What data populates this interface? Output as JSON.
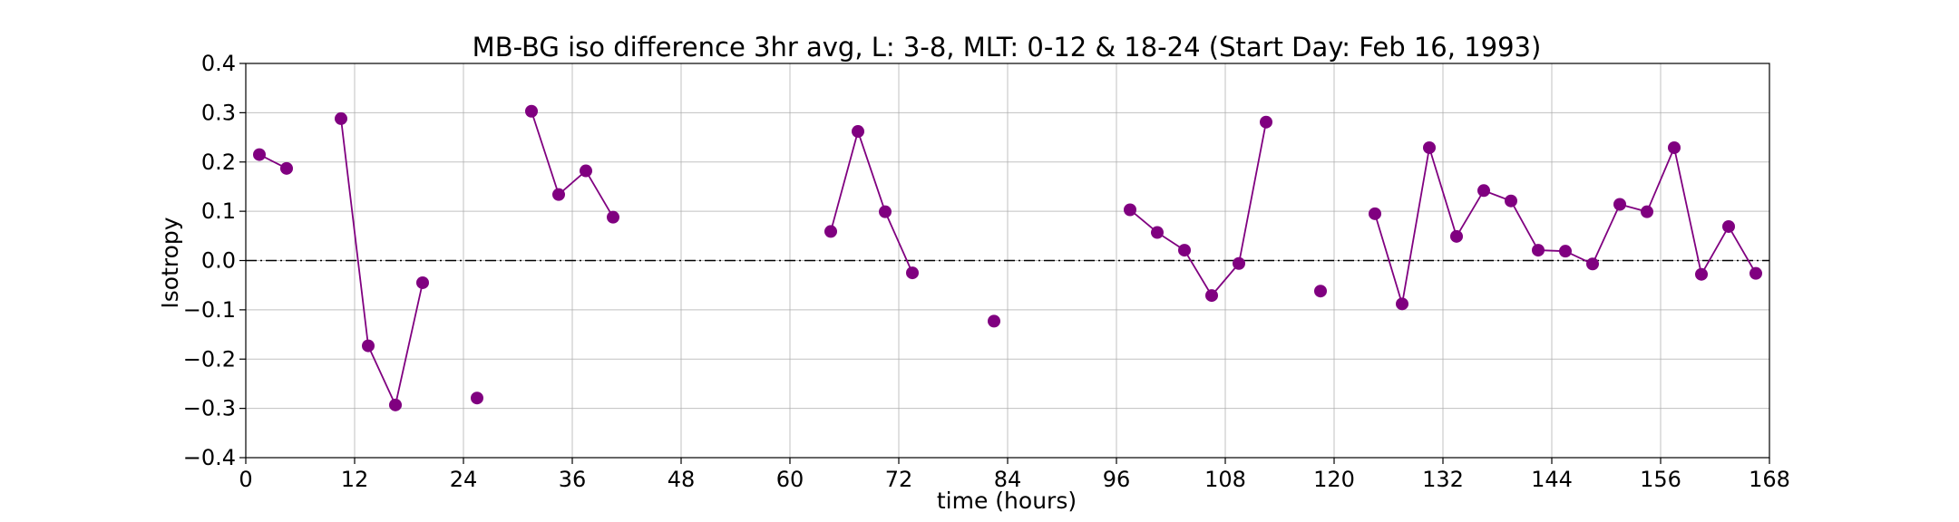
{
  "chart_data": {
    "type": "line",
    "title": "MB-BG iso difference 3hr avg, L: 3-8, MLT: 0-12 & 18-24 (Start Day: Feb 16, 1993)",
    "xlabel": "time (hours)",
    "ylabel": "Isotropy",
    "xlim": [
      0,
      168
    ],
    "ylim": [
      -0.4,
      0.4
    ],
    "xticks": [
      0,
      12,
      24,
      36,
      48,
      60,
      72,
      84,
      96,
      108,
      120,
      132,
      144,
      156,
      168
    ],
    "yticks": [
      -0.4,
      -0.3,
      -0.2,
      -0.1,
      0.0,
      0.1,
      0.2,
      0.3,
      0.4
    ],
    "xtick_labels": [
      "0",
      "12",
      "24",
      "36",
      "48",
      "60",
      "72",
      "84",
      "96",
      "108",
      "120",
      "132",
      "144",
      "156",
      "168"
    ],
    "ytick_labels": [
      "−0.4",
      "−0.3",
      "−0.2",
      "−0.1",
      "0.0",
      "0.1",
      "0.2",
      "0.3",
      "0.4"
    ],
    "grid": true,
    "reference_line": {
      "y": 0.0,
      "style": "dash-dot",
      "color": "#000000"
    },
    "series": [
      {
        "color": "#800080",
        "marker": "circle",
        "segments": [
          [
            [
              1.5,
              0.215
            ],
            [
              4.5,
              0.187
            ]
          ],
          [
            [
              10.5,
              0.288
            ],
            [
              13.5,
              -0.173
            ],
            [
              16.5,
              -0.293
            ],
            [
              19.5,
              -0.045
            ]
          ],
          [
            [
              25.5,
              -0.279
            ]
          ],
          [
            [
              31.5,
              0.303
            ],
            [
              34.5,
              0.134
            ],
            [
              37.5,
              0.182
            ],
            [
              40.5,
              0.088
            ]
          ],
          [
            [
              64.5,
              0.059
            ],
            [
              67.5,
              0.262
            ],
            [
              70.5,
              0.099
            ],
            [
              73.5,
              -0.025
            ]
          ],
          [
            [
              82.5,
              -0.123
            ]
          ],
          [
            [
              97.5,
              0.103
            ],
            [
              100.5,
              0.057
            ],
            [
              103.5,
              0.021
            ],
            [
              106.5,
              -0.071
            ],
            [
              109.5,
              -0.006
            ],
            [
              112.5,
              0.281
            ]
          ],
          [
            [
              118.5,
              -0.062
            ]
          ],
          [
            [
              124.5,
              0.095
            ],
            [
              127.5,
              -0.088
            ],
            [
              130.5,
              0.229
            ],
            [
              133.5,
              0.049
            ],
            [
              136.5,
              0.142
            ],
            [
              139.5,
              0.121
            ],
            [
              142.5,
              0.021
            ],
            [
              145.5,
              0.019
            ],
            [
              148.5,
              -0.007
            ],
            [
              151.5,
              0.114
            ],
            [
              154.5,
              0.099
            ],
            [
              157.5,
              0.229
            ],
            [
              160.5,
              -0.028
            ],
            [
              163.5,
              0.069
            ],
            [
              166.5,
              -0.026
            ]
          ]
        ]
      }
    ]
  }
}
